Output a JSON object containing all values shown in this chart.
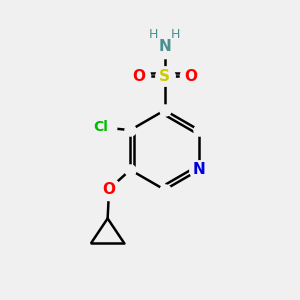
{
  "bg_color": "#f0f0f0",
  "bond_color": "#000000",
  "atom_colors": {
    "N_ring": "#0000dd",
    "N_amine": "#4a9090",
    "O": "#ff0000",
    "S": "#cccc00",
    "Cl": "#00bb00",
    "H": "#4a9090"
  },
  "figsize": [
    3.0,
    3.0
  ],
  "dpi": 100
}
